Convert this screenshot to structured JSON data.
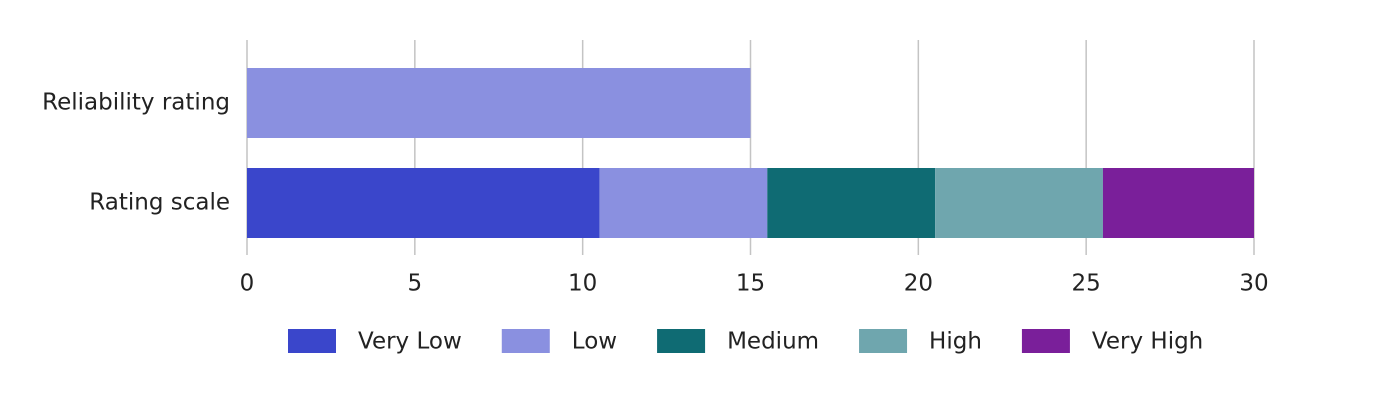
{
  "chart_data": {
    "type": "stacked-bar-horizontal",
    "categories": [
      "Reliability rating",
      "Rating scale"
    ],
    "series": [
      {
        "name": "Very Low",
        "color": "#3a46cb",
        "values": [
          null,
          10.5
        ]
      },
      {
        "name": "Low",
        "color": "#8a90e0",
        "values": [
          15,
          5
        ]
      },
      {
        "name": "Medium",
        "color": "#0f6b73",
        "values": [
          null,
          5
        ]
      },
      {
        "name": "High",
        "color": "#6fa6ae",
        "values": [
          null,
          5
        ]
      },
      {
        "name": "Very High",
        "color": "#7a1f9a",
        "values": [
          null,
          4.5
        ]
      }
    ],
    "xlim": [
      0,
      30
    ],
    "xticks": [
      0,
      5,
      10,
      15,
      20,
      25,
      30
    ],
    "grid": true,
    "legend": "bottom"
  }
}
